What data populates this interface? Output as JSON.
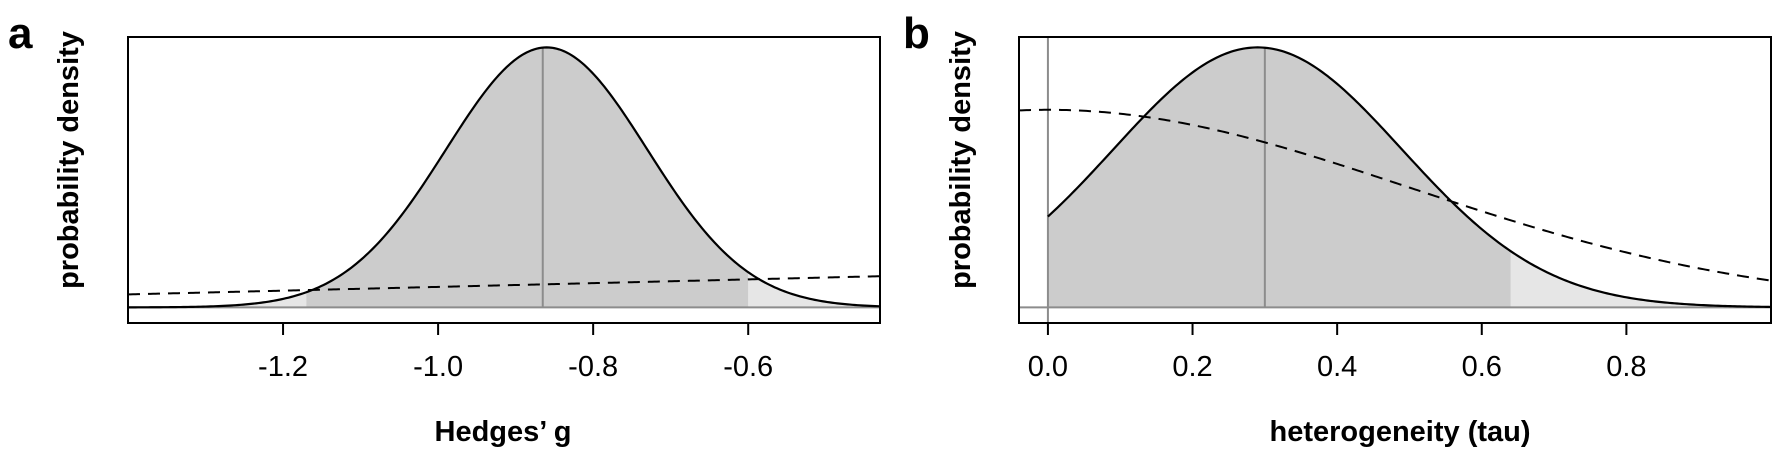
{
  "chart_data": [
    {
      "type": "area",
      "panel_label": "a",
      "xlabel": "Hedges’ g",
      "ylabel": "probability density",
      "xlim": [
        -1.4,
        -0.43
      ],
      "ylim": [
        -0.06,
        1.04
      ],
      "xticks": [
        -1.2,
        -1.0,
        -0.8,
        -0.6
      ],
      "xtick_labels": [
        "-1.2",
        "-1.0",
        "-0.8",
        "-0.6"
      ],
      "posterior": {
        "type": "normal",
        "mean": -0.86,
        "sd": 0.13,
        "peak": 1.0
      },
      "prior": {
        "line_style": "dashed",
        "x": [
          -1.4,
          -0.43
        ],
        "y": [
          0.05,
          0.12
        ]
      },
      "credible_interval": [
        -1.17,
        -0.6
      ],
      "point_estimate": -0.865,
      "colors": {
        "ci_fill": "#cccccc",
        "tail_fill": "#e6e6e6",
        "reference_line": "#8c8c8c",
        "curve": "#000000"
      }
    },
    {
      "type": "area",
      "panel_label": "b",
      "xlabel": "heterogeneity (tau)",
      "ylabel": "probability density",
      "xlim": [
        -0.04,
        1.0
      ],
      "ylim": [
        -0.06,
        1.04
      ],
      "xticks": [
        0.0,
        0.2,
        0.4,
        0.6,
        0.8
      ],
      "xtick_labels": [
        "0.0",
        "0.2",
        "0.4",
        "0.6",
        "0.8"
      ],
      "posterior": {
        "type": "normal",
        "mean": 0.29,
        "sd": 0.2,
        "peak": 1.0,
        "lower_bound": 0.0
      },
      "prior": {
        "type": "half-normal",
        "sd": 0.5,
        "peak": 0.76,
        "line_style": "dashed"
      },
      "credible_interval": [
        0.0,
        0.64
      ],
      "point_estimate": 0.3,
      "colors": {
        "ci_fill": "#cccccc",
        "tail_fill": "#e6e6e6",
        "reference_line": "#8c8c8c",
        "curve": "#000000"
      }
    }
  ]
}
